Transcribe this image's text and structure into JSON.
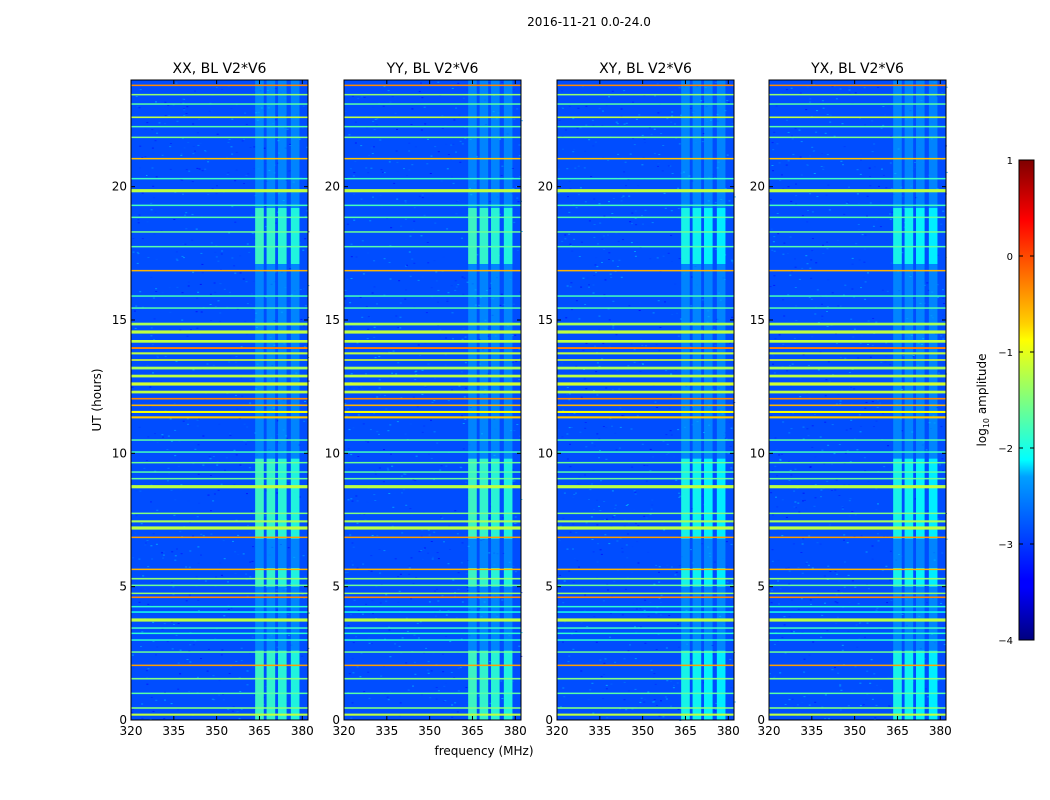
{
  "chart_data": {
    "type": "heatmap",
    "suptitle": "2016-11-21 0.0-24.0",
    "xlabel": "frequency (MHz)",
    "ylabel": "UT (hours)",
    "xlim": [
      320,
      382
    ],
    "ylim": [
      0,
      24
    ],
    "x_ticks": [
      320,
      335,
      350,
      365,
      380
    ],
    "y_ticks": [
      0,
      5,
      10,
      15,
      20
    ],
    "panels": [
      {
        "title": "XX, BL V2*V6",
        "pol": "XX"
      },
      {
        "title": "YY, BL V2*V6",
        "pol": "YY"
      },
      {
        "title": "XY, BL V2*V6",
        "pol": "XY"
      },
      {
        "title": "YX, BL V2*V6",
        "pol": "YX"
      }
    ],
    "colorbar": {
      "label": "log",
      "label_sub": "10",
      "label_suffix": " amplitude",
      "range": [
        -4,
        1
      ],
      "ticks": [
        "1",
        "0",
        "−1",
        "−2",
        "−3",
        "−4"
      ],
      "colormap": "jet"
    },
    "background_log_amplitude": -3.0,
    "rfi_band_mhz": [
      363,
      381
    ],
    "rfi_band_log_amplitude": -2.0,
    "rfi_active_hours": [
      [
        0.0,
        2.6
      ],
      [
        5.0,
        5.7
      ],
      [
        6.8,
        9.8
      ],
      [
        17.1,
        19.2
      ]
    ],
    "rfi_channel_columns_mhz": [
      [
        363.5,
        366.5
      ],
      [
        367.5,
        370.5
      ],
      [
        371.5,
        374.5
      ],
      [
        376,
        379
      ]
    ],
    "broadband_events": [
      {
        "ut": 0.2,
        "level": -1.2,
        "width": 0.08
      },
      {
        "ut": 0.45,
        "level": -1.5,
        "width": 0.06
      },
      {
        "ut": 1.0,
        "level": -1.7,
        "width": 0.05
      },
      {
        "ut": 1.55,
        "level": -1.5,
        "width": 0.06
      },
      {
        "ut": 2.05,
        "level": -0.4,
        "width": 0.05
      },
      {
        "ut": 2.55,
        "level": -1.6,
        "width": 0.05
      },
      {
        "ut": 3.0,
        "level": -1.9,
        "width": 0.05
      },
      {
        "ut": 3.25,
        "level": -1.9,
        "width": 0.05
      },
      {
        "ut": 3.45,
        "level": -1.8,
        "width": 0.05
      },
      {
        "ut": 3.75,
        "level": -1.2,
        "width": 0.12
      },
      {
        "ut": 4.05,
        "level": -2.0,
        "width": 0.05
      },
      {
        "ut": 4.25,
        "level": -1.9,
        "width": 0.05
      },
      {
        "ut": 4.6,
        "level": -0.3,
        "width": 0.06
      },
      {
        "ut": 4.75,
        "level": -1.4,
        "width": 0.05
      },
      {
        "ut": 5.05,
        "level": -1.6,
        "width": 0.05
      },
      {
        "ut": 5.3,
        "level": -1.4,
        "width": 0.06
      },
      {
        "ut": 5.65,
        "level": -0.5,
        "width": 0.05
      },
      {
        "ut": 6.85,
        "level": -0.4,
        "width": 0.05
      },
      {
        "ut": 7.2,
        "level": -1.2,
        "width": 0.12
      },
      {
        "ut": 7.45,
        "level": -1.3,
        "width": 0.08
      },
      {
        "ut": 7.75,
        "level": -1.5,
        "width": 0.05
      },
      {
        "ut": 8.75,
        "level": -1.2,
        "width": 0.12
      },
      {
        "ut": 9.05,
        "level": -1.6,
        "width": 0.05
      },
      {
        "ut": 9.3,
        "level": -1.7,
        "width": 0.05
      },
      {
        "ut": 9.65,
        "level": -1.6,
        "width": 0.05
      },
      {
        "ut": 10.05,
        "level": -1.8,
        "width": 0.05
      },
      {
        "ut": 10.5,
        "level": -1.7,
        "width": 0.05
      },
      {
        "ut": 11.35,
        "level": -0.6,
        "width": 0.08
      },
      {
        "ut": 11.55,
        "level": -0.9,
        "width": 0.08
      },
      {
        "ut": 11.8,
        "level": -0.5,
        "width": 0.06
      },
      {
        "ut": 12.05,
        "level": -0.3,
        "width": 0.06
      },
      {
        "ut": 12.3,
        "level": -1.2,
        "width": 0.1
      },
      {
        "ut": 12.6,
        "level": -1.1,
        "width": 0.12
      },
      {
        "ut": 12.9,
        "level": -1.2,
        "width": 0.1
      },
      {
        "ut": 13.2,
        "level": -1.3,
        "width": 0.1
      },
      {
        "ut": 13.5,
        "level": -1.1,
        "width": 0.06
      },
      {
        "ut": 13.75,
        "level": -1.2,
        "width": 0.08
      },
      {
        "ut": 13.95,
        "level": -0.3,
        "width": 0.07
      },
      {
        "ut": 14.2,
        "level": -1.2,
        "width": 0.1
      },
      {
        "ut": 14.55,
        "level": -1.2,
        "width": 0.12
      },
      {
        "ut": 14.85,
        "level": -1.3,
        "width": 0.1
      },
      {
        "ut": 15.45,
        "level": -1.7,
        "width": 0.05
      },
      {
        "ut": 15.9,
        "level": -1.8,
        "width": 0.05
      },
      {
        "ut": 16.85,
        "level": -0.5,
        "width": 0.05
      },
      {
        "ut": 17.75,
        "level": -1.7,
        "width": 0.05
      },
      {
        "ut": 18.3,
        "level": -1.6,
        "width": 0.05
      },
      {
        "ut": 18.85,
        "level": -1.7,
        "width": 0.05
      },
      {
        "ut": 19.3,
        "level": -1.8,
        "width": 0.05
      },
      {
        "ut": 19.85,
        "level": -1.2,
        "width": 0.12
      },
      {
        "ut": 20.3,
        "level": -1.8,
        "width": 0.05
      },
      {
        "ut": 21.05,
        "level": -0.6,
        "width": 0.05
      },
      {
        "ut": 21.85,
        "level": -1.5,
        "width": 0.05
      },
      {
        "ut": 22.25,
        "level": -1.7,
        "width": 0.05
      },
      {
        "ut": 22.6,
        "level": -1.2,
        "width": 0.06
      },
      {
        "ut": 23.1,
        "level": -1.7,
        "width": 0.05
      },
      {
        "ut": 23.45,
        "level": -1.4,
        "width": 0.05
      },
      {
        "ut": 23.8,
        "level": -0.3,
        "width": 0.05
      }
    ]
  }
}
